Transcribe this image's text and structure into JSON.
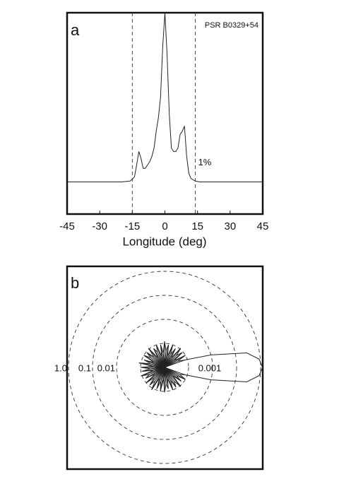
{
  "chart_data": [
    {
      "type": "line",
      "panel_label": "a",
      "title": "PSR B0329+54",
      "annotation": "1%",
      "xlabel": "Longitude  (deg)",
      "x": [
        -45,
        -20,
        -16,
        -14,
        -13,
        -12,
        -11,
        -10,
        -9,
        -8,
        -7,
        -6,
        -5,
        -4,
        -3,
        -2,
        -1,
        0,
        1,
        2,
        3,
        4,
        5,
        6,
        7,
        8,
        9,
        10,
        11,
        12,
        14,
        16,
        20,
        45
      ],
      "values": [
        0,
        0,
        0.005,
        0.03,
        0.1,
        0.18,
        0.14,
        0.08,
        0.08,
        0.1,
        0.12,
        0.15,
        0.2,
        0.3,
        0.38,
        0.5,
        0.8,
        1.0,
        0.75,
        0.4,
        0.2,
        0.18,
        0.18,
        0.2,
        0.28,
        0.3,
        0.33,
        0.15,
        0.05,
        0.02,
        0.005,
        0,
        0,
        0
      ],
      "color": "#222",
      "xlim": [
        -45,
        45
      ],
      "xticks": [
        -45,
        -30,
        -15,
        0,
        15,
        30,
        45
      ],
      "ylim": [
        -0.19,
        1.0
      ],
      "vlines": [
        -15,
        14
      ]
    },
    {
      "type": "polar",
      "panel_label": "b",
      "rscale": "log",
      "rlim": [
        0.0001,
        1
      ],
      "rticks": [
        {
          "value": 1,
          "label": "1.0"
        },
        0.1,
        0.01,
        0.001
      ],
      "color": "#222",
      "theta": [
        0,
        5,
        10,
        15,
        20,
        25,
        30,
        35,
        40,
        45,
        50,
        55,
        60,
        65,
        70,
        75,
        80,
        85,
        90,
        95,
        100,
        105,
        110,
        115,
        120,
        125,
        130,
        135,
        140,
        145,
        150,
        155,
        160,
        165,
        170,
        175,
        180,
        185,
        190,
        195,
        200,
        205,
        210,
        215,
        220,
        225,
        230,
        235,
        240,
        245,
        250,
        255,
        260,
        265,
        270,
        275,
        280,
        285,
        290,
        295,
        300,
        305,
        310,
        315,
        320,
        325,
        330,
        335,
        340,
        345,
        350,
        355
      ],
      "r": [
        1.2,
        0.9,
        0.3,
        0.01,
        0.0008,
        0.0004,
        0.001,
        0.0003,
        0.0009,
        0.0005,
        0.0011,
        0.0003,
        0.0008,
        0.0004,
        0.001,
        0.0003,
        0.0009,
        0.0005,
        0.0012,
        0.0004,
        0.0009,
        0.0003,
        0.001,
        0.0005,
        0.0008,
        0.0003,
        0.0011,
        0.0004,
        0.0009,
        0.0005,
        0.001,
        0.0003,
        0.0008,
        0.0004,
        0.0012,
        0.0003,
        0.001,
        0.0004,
        0.0009,
        0.0003,
        0.0011,
        0.0005,
        0.0008,
        0.0003,
        0.001,
        0.0004,
        0.0009,
        0.0005,
        0.0012,
        0.0003,
        0.0009,
        0.0004,
        0.001,
        0.0003,
        0.0011,
        0.0005,
        0.0008,
        0.0003,
        0.001,
        0.0004,
        0.0009,
        0.0005,
        0.0011,
        0.0003,
        0.0008,
        0.0004,
        0.001,
        0.0005,
        0.0008,
        0.01,
        0.3,
        0.9
      ]
    }
  ]
}
